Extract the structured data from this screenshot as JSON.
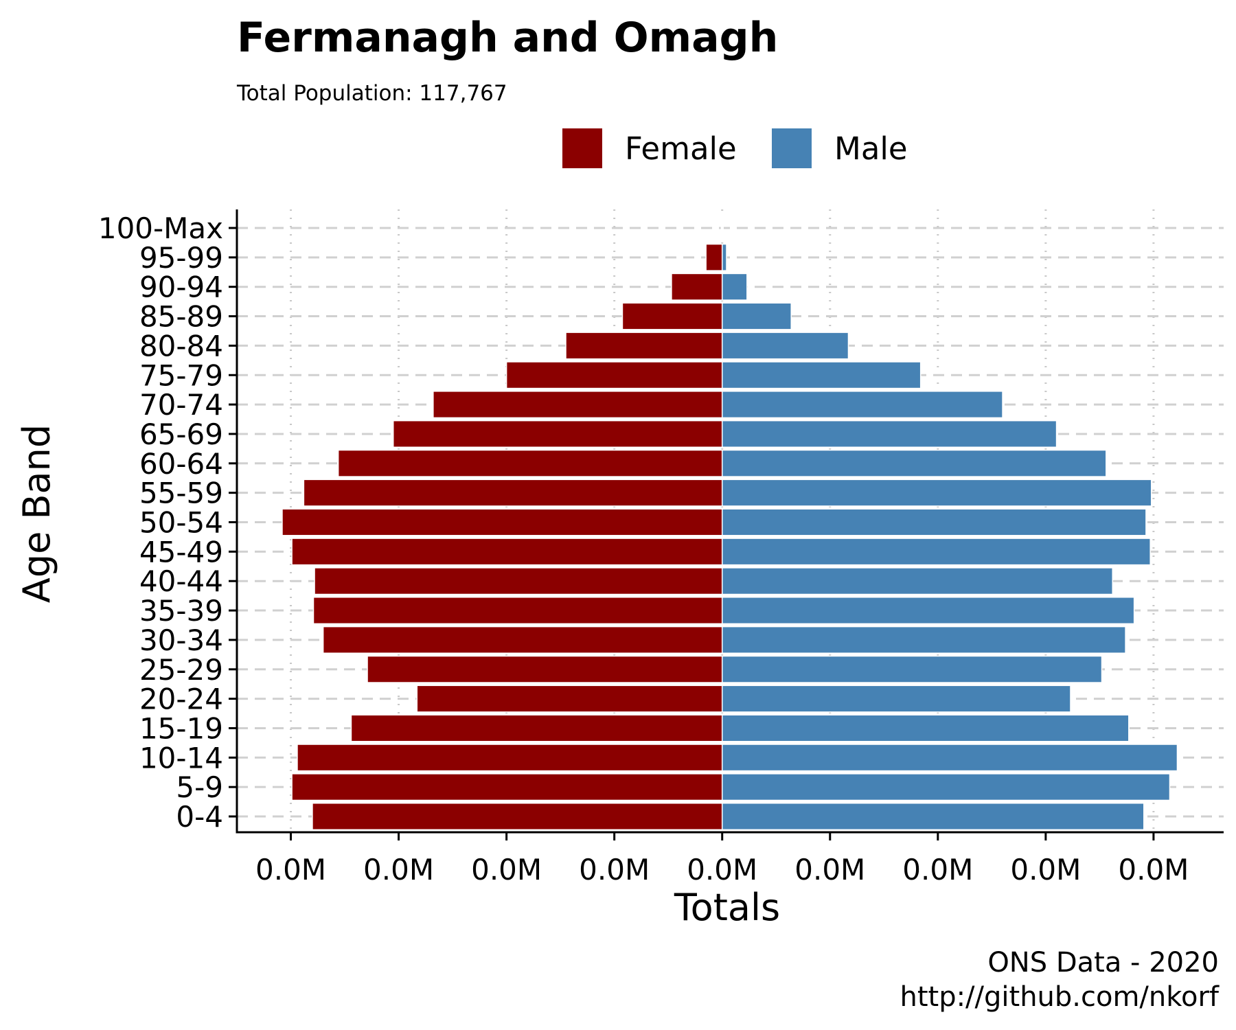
{
  "chart_data": {
    "type": "bar",
    "title": "Fermanagh and Omagh",
    "subtitle": "Total Population:  117,767",
    "xlabel": "Totals",
    "ylabel": "Age Band",
    "x_tick_labels": [
      "0.0M",
      "0.0M",
      "0.0M",
      "0.0M",
      "0.0M",
      "0.0M",
      "0.0M",
      "0.0M",
      "0.0M"
    ],
    "x_ticks": [
      -4000,
      -3000,
      -2000,
      -1000,
      0,
      1000,
      2000,
      3000,
      4000
    ],
    "xlim": [
      -4500,
      4650
    ],
    "categories": [
      "0-4",
      "5-9",
      "10-14",
      "15-19",
      "20-24",
      "25-29",
      "30-34",
      "35-39",
      "40-44",
      "45-49",
      "50-54",
      "55-59",
      "60-64",
      "65-69",
      "70-74",
      "75-79",
      "80-84",
      "85-89",
      "90-94",
      "95-99",
      "100-Max"
    ],
    "series": [
      {
        "name": "Female",
        "color": "#8B0000",
        "values": [
          -3800,
          -3990,
          -3940,
          -3440,
          -2830,
          -3290,
          -3700,
          -3790,
          -3780,
          -3990,
          -4080,
          -3880,
          -3560,
          -3050,
          -2680,
          -2000,
          -1450,
          -925,
          -470,
          -150,
          -8
        ]
      },
      {
        "name": "Male",
        "color": "#4682B4",
        "values": [
          3910,
          4150,
          4220,
          3770,
          3230,
          3520,
          3740,
          3820,
          3620,
          3970,
          3930,
          3980,
          3560,
          3100,
          2600,
          1840,
          1170,
          640,
          230,
          40,
          4
        ]
      }
    ],
    "legend": "top",
    "grid": "dashed horizontal, dotted vertical",
    "caption": [
      "ONS Data - 2020",
      "http://github.com/nkorf"
    ]
  }
}
